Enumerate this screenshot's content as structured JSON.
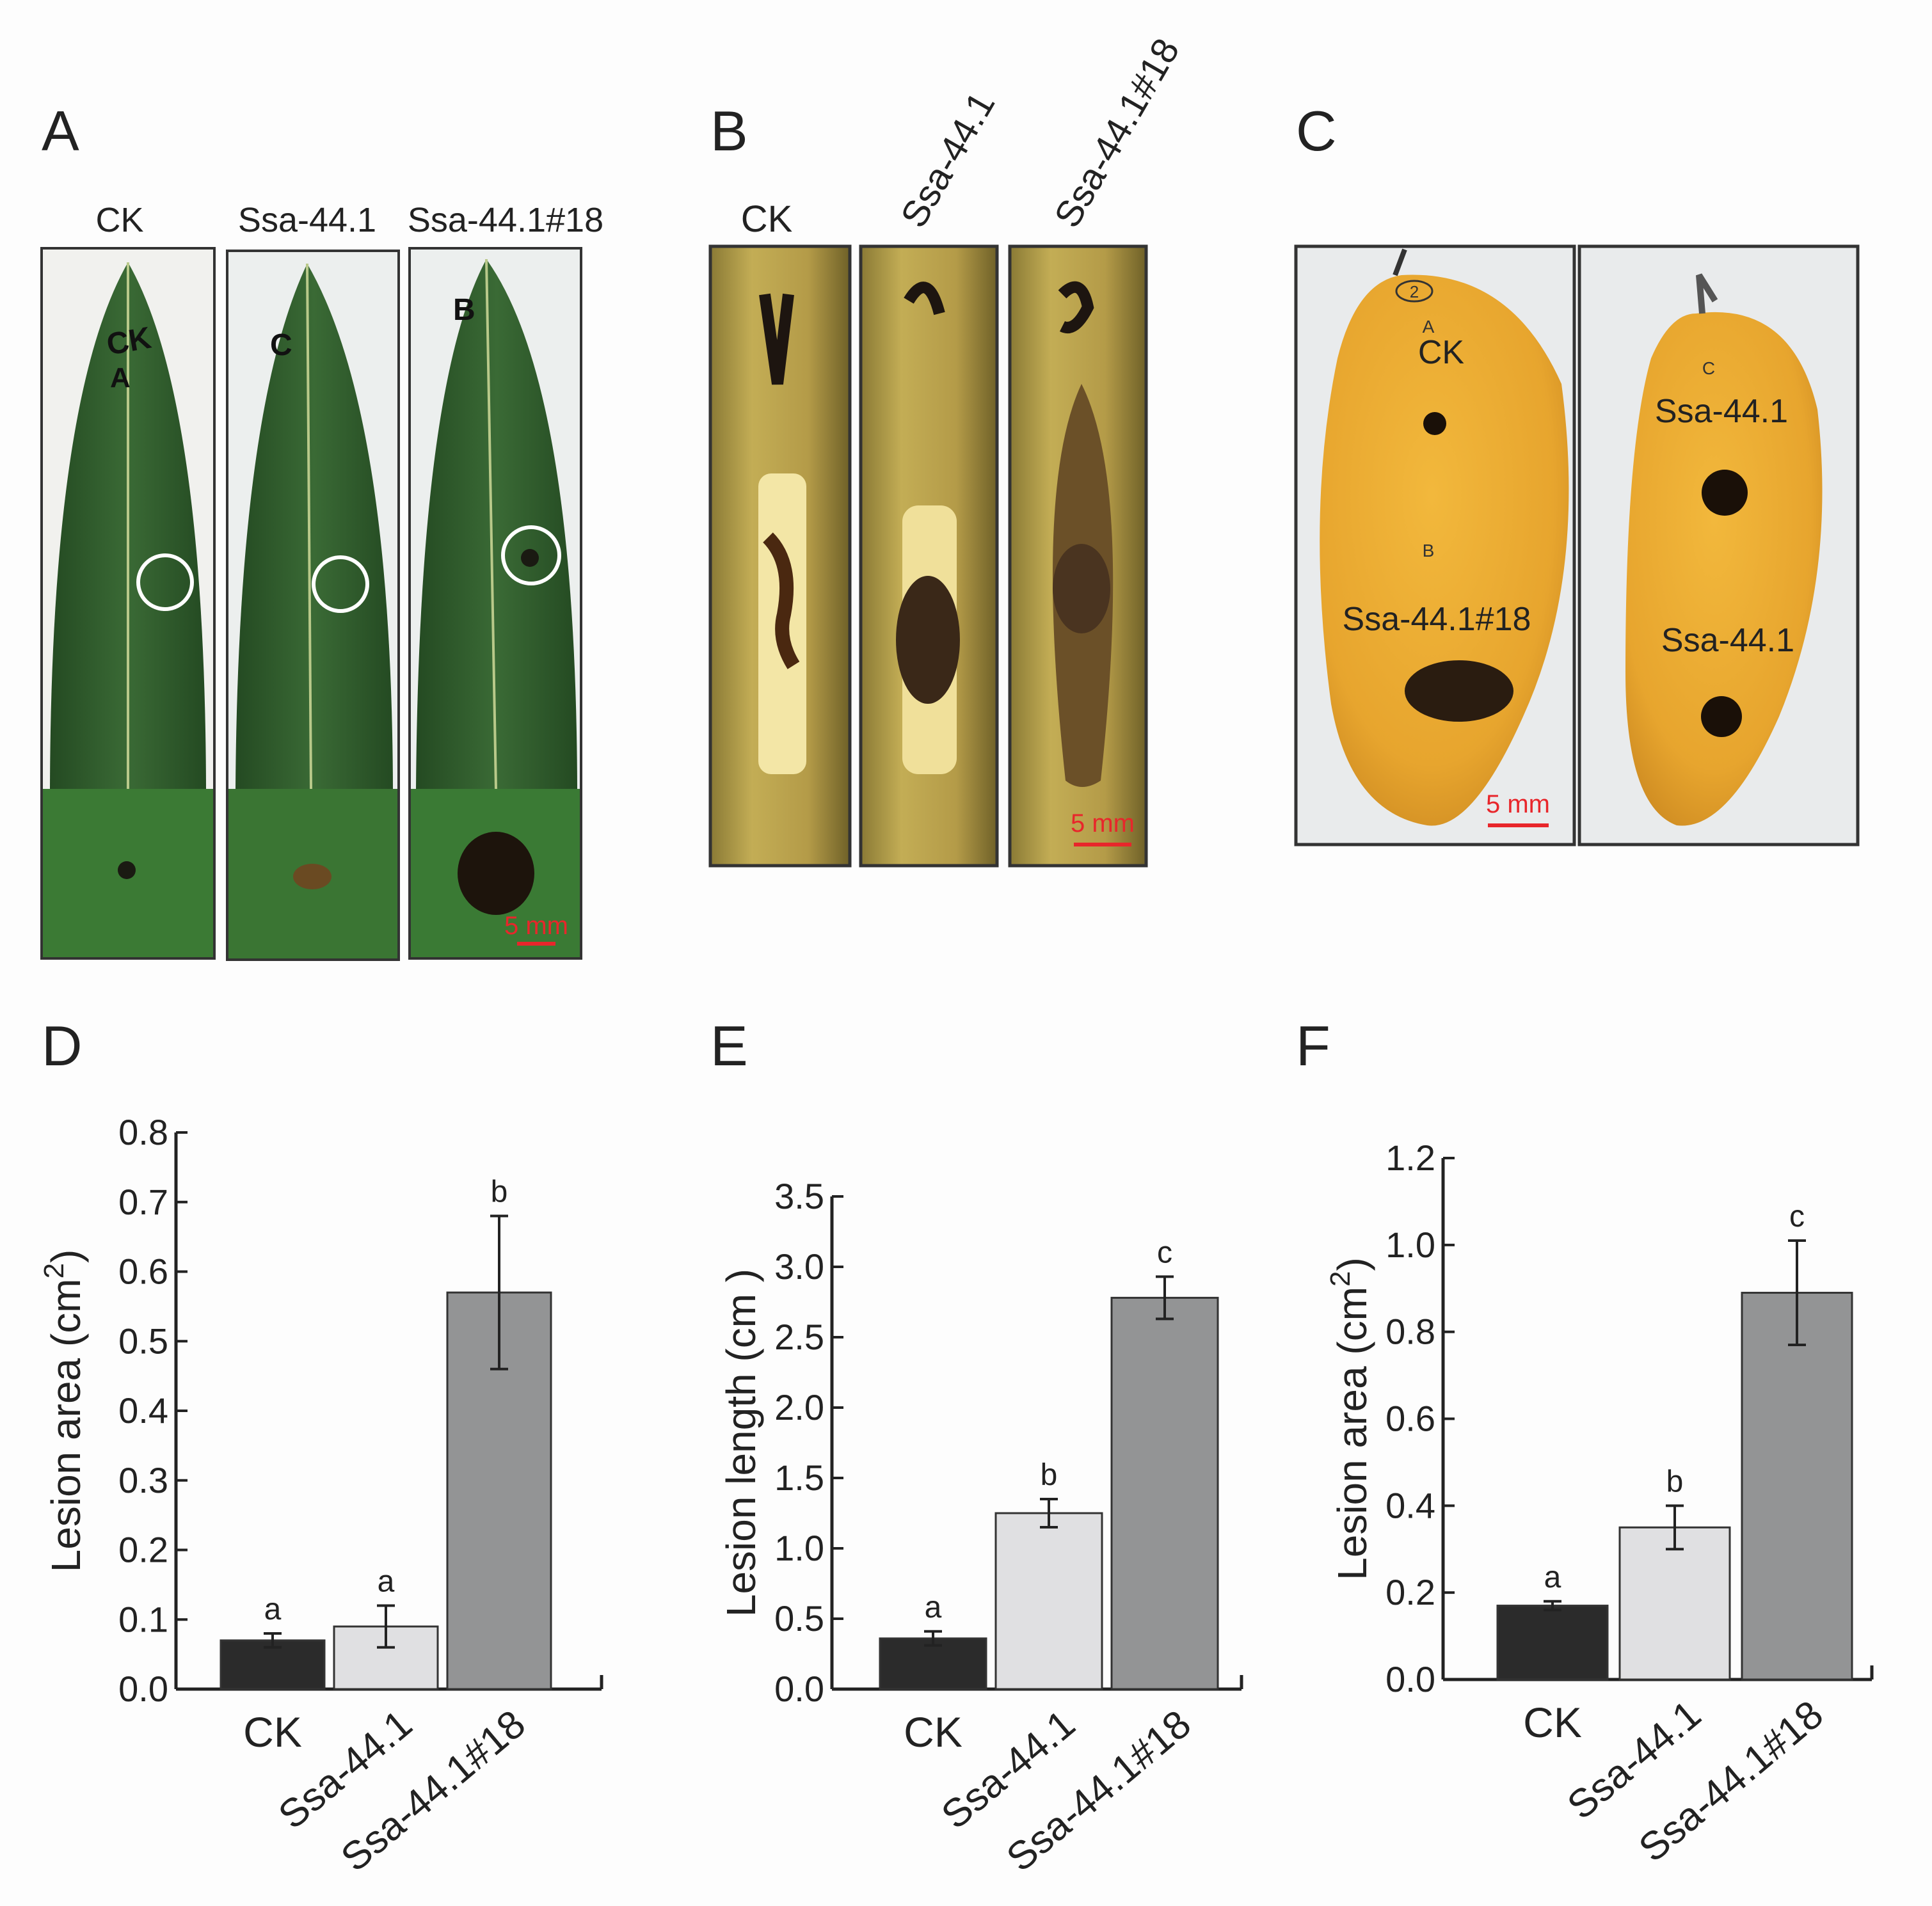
{
  "panels": {
    "A": {
      "letter": "A",
      "labels": [
        "CK",
        "Ssa-44.1",
        "Ssa-44.1#18"
      ],
      "scale_label": "5 mm",
      "leaf_marks": [
        "CK",
        "A",
        "C",
        "B"
      ]
    },
    "B": {
      "letter": "B",
      "labels": [
        "CK",
        "Ssa-44.1",
        "Ssa-44.1#18"
      ],
      "scale_label": "5 mm"
    },
    "C": {
      "letter": "C",
      "fruit_labels": {
        "left_top": "CK",
        "left_bottom": "Ssa-44.1#18",
        "right_top": "Ssa-44.1",
        "right_bottom": "Ssa-44.1"
      },
      "fruit_marks": [
        "2",
        "A",
        "B",
        "C"
      ],
      "scale_label": "5 mm"
    },
    "D": {
      "letter": "D"
    },
    "E": {
      "letter": "E"
    },
    "F": {
      "letter": "F"
    }
  },
  "colors": {
    "ck_bar": "#2b2b2b",
    "ssa_bar": "#e0e0e2",
    "ssa18_bar": "#939495",
    "scale_bar": "#e8262b",
    "leaf": "#2f5a2c",
    "stem": "#b9a24a",
    "mango": "#e8a932"
  },
  "chart_data": [
    {
      "panel": "D",
      "type": "bar",
      "categories": [
        "CK",
        "Ssa-44.1",
        "Ssa-44.1#18"
      ],
      "values": [
        0.07,
        0.09,
        0.57
      ],
      "errors": [
        0.01,
        0.03,
        0.11
      ],
      "letters": [
        "a",
        "a",
        "b"
      ],
      "ylabel": "Lesion area (cm",
      "ylabel_sup": "2",
      "ylabel_close": ")",
      "ylim": [
        0,
        0.8
      ],
      "yticks": [
        "0.0",
        "0.1",
        "0.2",
        "0.3",
        "0.4",
        "0.5",
        "0.6",
        "0.7",
        "0.8"
      ]
    },
    {
      "panel": "E",
      "type": "bar",
      "categories": [
        "CK",
        "Ssa-44.1",
        "Ssa-44.1#18"
      ],
      "values": [
        0.36,
        1.25,
        2.78
      ],
      "errors": [
        0.05,
        0.1,
        0.15
      ],
      "letters": [
        "a",
        "b",
        "c"
      ],
      "ylabel": "Lesion length (cm )",
      "ylabel_sup": "",
      "ylabel_close": "",
      "ylim": [
        0,
        3.5
      ],
      "yticks": [
        "0.0",
        "0.5",
        "1.0",
        "1.5",
        "2.0",
        "2.5",
        "3.0",
        "3.5"
      ]
    },
    {
      "panel": "F",
      "type": "bar",
      "categories": [
        "CK",
        "Ssa-44.1",
        "Ssa-44.1#18"
      ],
      "values": [
        0.17,
        0.35,
        0.89
      ],
      "errors": [
        0.01,
        0.05,
        0.12
      ],
      "letters": [
        "a",
        "b",
        "c"
      ],
      "ylabel": "Lesion area (cm",
      "ylabel_sup": "2",
      "ylabel_close": ")",
      "ylim": [
        0,
        1.2
      ],
      "yticks": [
        "0.0",
        "0.2",
        "0.4",
        "0.6",
        "0.8",
        "1.0",
        "1.2"
      ]
    }
  ]
}
